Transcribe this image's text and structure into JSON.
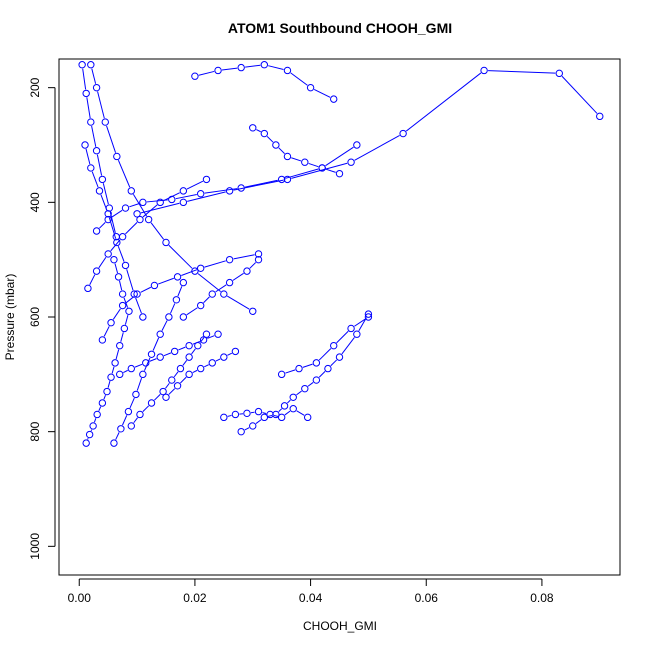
{
  "chart_data": {
    "type": "scatter",
    "mode": "points-and-lines",
    "title": "ATOM1 Southbound CHOOH_GMI",
    "xlabel": "CHOOH_GMI",
    "ylabel": "Pressure (mbar)",
    "xlim": [
      -0.0035,
      0.0935
    ],
    "ylim": [
      1050,
      150
    ],
    "x_ticks": [
      "0.00",
      "0.02",
      "0.04",
      "0.06",
      "0.08"
    ],
    "x_tick_values": [
      0,
      0.02,
      0.04,
      0.06,
      0.08
    ],
    "y_ticks": [
      "200",
      "400",
      "600",
      "800",
      "1000"
    ],
    "y_tick_values": [
      200,
      400,
      600,
      800,
      1000
    ],
    "grid": false,
    "legend": "none",
    "color": "#0000ff",
    "series": [
      {
        "x": [
          0.0012,
          0.0018,
          0.0024,
          0.0031,
          0.004,
          0.0048,
          0.0055,
          0.0062,
          0.007,
          0.0078,
          0.0086,
          0.0075,
          0.0068,
          0.006
        ],
        "y": [
          820,
          805,
          790,
          770,
          750,
          730,
          705,
          680,
          650,
          620,
          590,
          560,
          530,
          500
        ]
      },
      {
        "x": [
          0.006,
          0.0072,
          0.0085,
          0.0098,
          0.011,
          0.0125,
          0.014,
          0.0155,
          0.0168,
          0.018
        ],
        "y": [
          820,
          795,
          765,
          735,
          700,
          665,
          630,
          600,
          570,
          540
        ]
      },
      {
        "x": [
          0.028,
          0.03,
          0.032,
          0.034,
          0.0355,
          0.037,
          0.039,
          0.041,
          0.043,
          0.045,
          0.048,
          0.05
        ],
        "y": [
          800,
          790,
          775,
          770,
          755,
          740,
          725,
          710,
          690,
          670,
          630,
          595
        ]
      },
      {
        "x": [
          0.025,
          0.027,
          0.029,
          0.031,
          0.033,
          0.035,
          0.037,
          0.0395
        ],
        "y": [
          775,
          770,
          768,
          765,
          770,
          775,
          760,
          775
        ]
      },
      {
        "x": [
          0.002,
          0.003,
          0.0045,
          0.0065,
          0.009,
          0.012,
          0.015,
          0.02,
          0.025,
          0.03
        ],
        "y": [
          160,
          200,
          260,
          320,
          380,
          430,
          470,
          520,
          560,
          590
        ]
      },
      {
        "x": [
          0.003,
          0.005,
          0.008,
          0.011,
          0.016,
          0.021,
          0.028,
          0.035,
          0.042,
          0.048
        ],
        "y": [
          450,
          430,
          410,
          400,
          395,
          385,
          375,
          360,
          340,
          300
        ]
      },
      {
        "x": [
          0.01,
          0.018,
          0.026,
          0.036,
          0.047,
          0.056,
          0.07,
          0.083,
          0.09
        ],
        "y": [
          420,
          400,
          380,
          360,
          330,
          280,
          170,
          175,
          250
        ]
      },
      {
        "x": [
          0.004,
          0.0055,
          0.0075,
          0.01,
          0.013,
          0.017,
          0.021,
          0.026,
          0.031
        ],
        "y": [
          640,
          610,
          580,
          560,
          545,
          530,
          515,
          500,
          490
        ]
      },
      {
        "x": [
          0.001,
          0.002,
          0.0035,
          0.005,
          0.0065,
          0.008,
          0.0095,
          0.011
        ],
        "y": [
          300,
          340,
          380,
          420,
          470,
          510,
          560,
          600
        ]
      },
      {
        "x": [
          0.015,
          0.017,
          0.019,
          0.021,
          0.023,
          0.025,
          0.027
        ],
        "y": [
          740,
          720,
          700,
          690,
          680,
          670,
          660
        ]
      },
      {
        "x": [
          0.007,
          0.009,
          0.0115,
          0.014,
          0.0165,
          0.019,
          0.0215,
          0.024
        ],
        "y": [
          700,
          690,
          680,
          670,
          660,
          650,
          640,
          630
        ]
      },
      {
        "x": [
          0.03,
          0.032,
          0.034,
          0.036,
          0.039,
          0.042,
          0.045
        ],
        "y": [
          270,
          280,
          300,
          320,
          330,
          340,
          350
        ]
      },
      {
        "x": [
          0.02,
          0.024,
          0.028,
          0.032,
          0.036,
          0.04,
          0.044
        ],
        "y": [
          180,
          170,
          165,
          160,
          170,
          200,
          220
        ]
      },
      {
        "x": [
          0.0015,
          0.003,
          0.005,
          0.0075,
          0.0105,
          0.014,
          0.018,
          0.022
        ],
        "y": [
          550,
          520,
          490,
          460,
          430,
          400,
          380,
          360
        ]
      },
      {
        "x": [
          0.009,
          0.0105,
          0.0125,
          0.0145,
          0.016,
          0.0175,
          0.019,
          0.0205,
          0.022
        ],
        "y": [
          790,
          770,
          750,
          730,
          710,
          690,
          670,
          650,
          630
        ]
      },
      {
        "x": [
          0.0005,
          0.0012,
          0.002,
          0.003,
          0.004,
          0.0052,
          0.0064
        ],
        "y": [
          160,
          210,
          260,
          310,
          360,
          410,
          460
        ]
      },
      {
        "x": [
          0.035,
          0.038,
          0.041,
          0.044,
          0.047,
          0.05
        ],
        "y": [
          700,
          690,
          680,
          650,
          620,
          600
        ]
      },
      {
        "x": [
          0.018,
          0.021,
          0.023,
          0.026,
          0.029,
          0.031
        ],
        "y": [
          600,
          580,
          560,
          540,
          520,
          500
        ]
      }
    ]
  }
}
